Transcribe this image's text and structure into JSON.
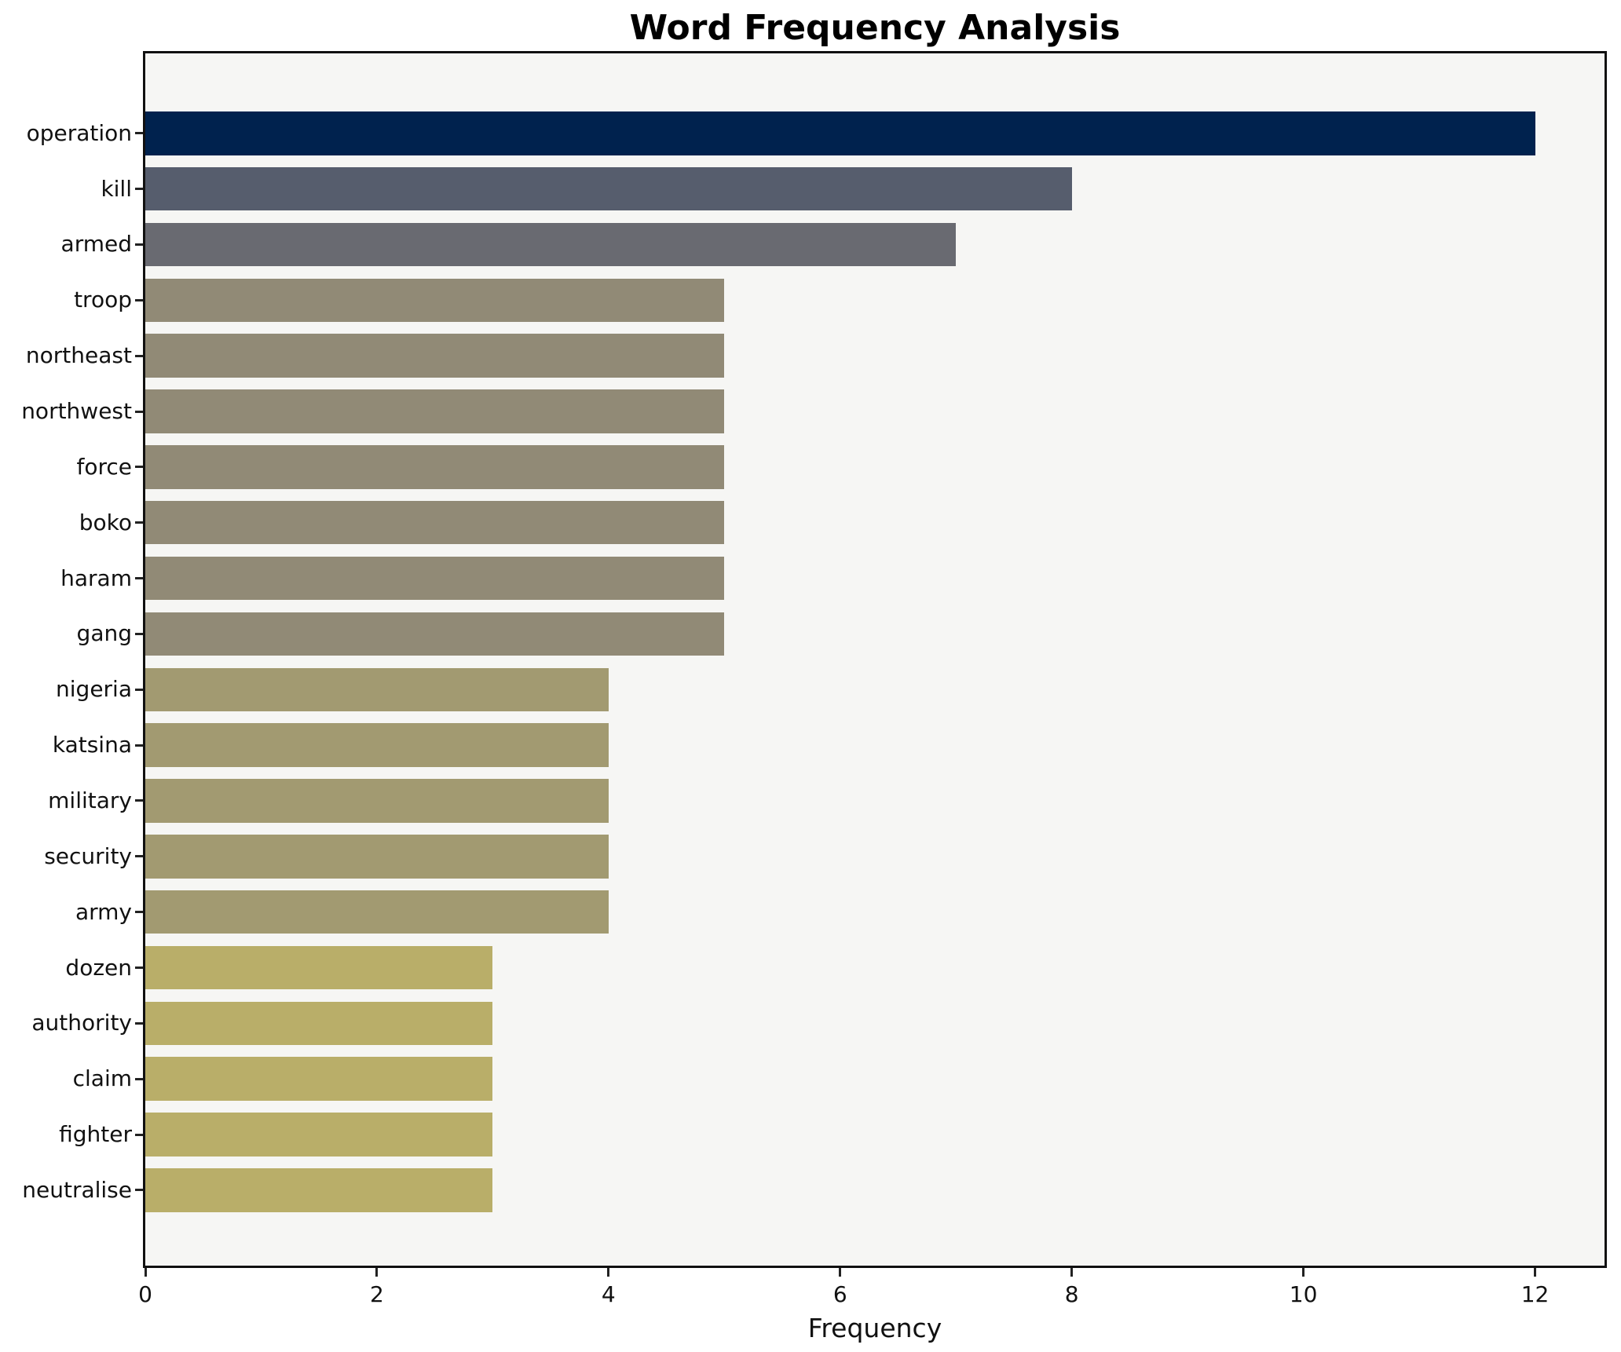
{
  "chart_data": {
    "type": "bar",
    "orientation": "horizontal",
    "title": "Word Frequency Analysis",
    "xlabel": "Frequency",
    "ylabel": "",
    "categories": [
      "operation",
      "kill",
      "armed",
      "troop",
      "northeast",
      "northwest",
      "force",
      "boko",
      "haram",
      "gang",
      "nigeria",
      "katsina",
      "military",
      "security",
      "army",
      "dozen",
      "authority",
      "claim",
      "fighter",
      "neutralise"
    ],
    "values": [
      12,
      8,
      7,
      5,
      5,
      5,
      5,
      5,
      5,
      5,
      4,
      4,
      4,
      4,
      4,
      3,
      3,
      3,
      3,
      3
    ],
    "bar_colors": [
      "#00224e",
      "#565d6d",
      "#696a71",
      "#918a76",
      "#918a76",
      "#918a76",
      "#918a76",
      "#918a76",
      "#918a76",
      "#918a76",
      "#a29a71",
      "#a29a71",
      "#a29a71",
      "#a29a71",
      "#a29a71",
      "#b9ae69",
      "#b9ae69",
      "#b9ae69",
      "#b9ae69",
      "#b9ae69"
    ],
    "x_ticks": [
      0,
      2,
      4,
      6,
      8,
      10,
      12
    ],
    "xlim": [
      0,
      12.6
    ],
    "grid": false,
    "legend": "none",
    "plot_background": "#f6f6f4",
    "spine_color": "#111111",
    "colormap": "cividis"
  }
}
